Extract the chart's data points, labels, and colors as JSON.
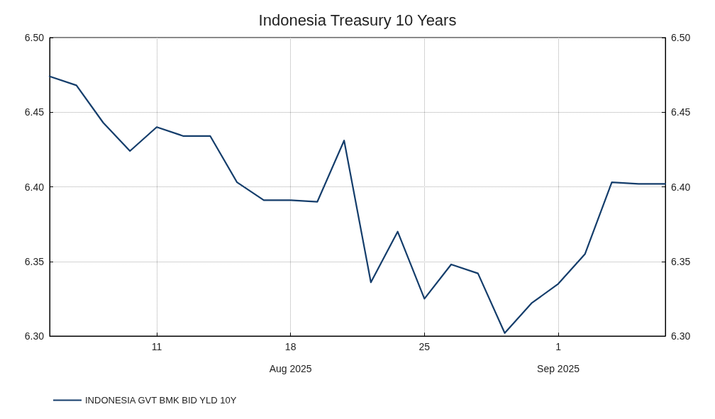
{
  "chart_data": {
    "type": "line",
    "title": "Indonesia Treasury 10 Years",
    "categories": [
      null,
      null,
      null,
      null,
      "11",
      null,
      null,
      null,
      null,
      "18",
      null,
      null,
      null,
      null,
      "25",
      null,
      null,
      null,
      null,
      "1",
      null,
      null,
      null,
      null
    ],
    "series": [
      {
        "name": "INDONESIA GVT BMK BID YLD 10Y",
        "color": "#143d6b",
        "values": [
          6.474,
          6.468,
          6.443,
          6.424,
          6.44,
          6.434,
          6.434,
          6.403,
          6.391,
          6.391,
          6.39,
          6.431,
          6.336,
          6.37,
          6.325,
          6.348,
          6.342,
          6.302,
          6.322,
          6.335,
          6.355,
          6.403,
          6.402,
          6.402
        ]
      }
    ],
    "ylim": [
      6.3,
      6.5
    ],
    "yticks": [
      {
        "value": 6.3,
        "label": "6.30"
      },
      {
        "value": 6.35,
        "label": "6.35"
      },
      {
        "value": 6.4,
        "label": "6.40"
      },
      {
        "value": 6.45,
        "label": "6.45"
      },
      {
        "value": 6.5,
        "label": "6.50"
      }
    ],
    "y2lim": [
      6.3,
      6.5
    ],
    "y2ticks": [
      {
        "value": 6.3,
        "label": "6.30"
      },
      {
        "value": 6.35,
        "label": "6.35"
      },
      {
        "value": 6.4,
        "label": "6.40"
      },
      {
        "value": 6.45,
        "label": "6.45"
      },
      {
        "value": 6.5,
        "label": "6.50"
      }
    ],
    "annotations": [
      "Aug 2025",
      "Sep 2025"
    ],
    "grid": true,
    "legend": "bottom left",
    "marker": "none",
    "line_style": "solid"
  }
}
